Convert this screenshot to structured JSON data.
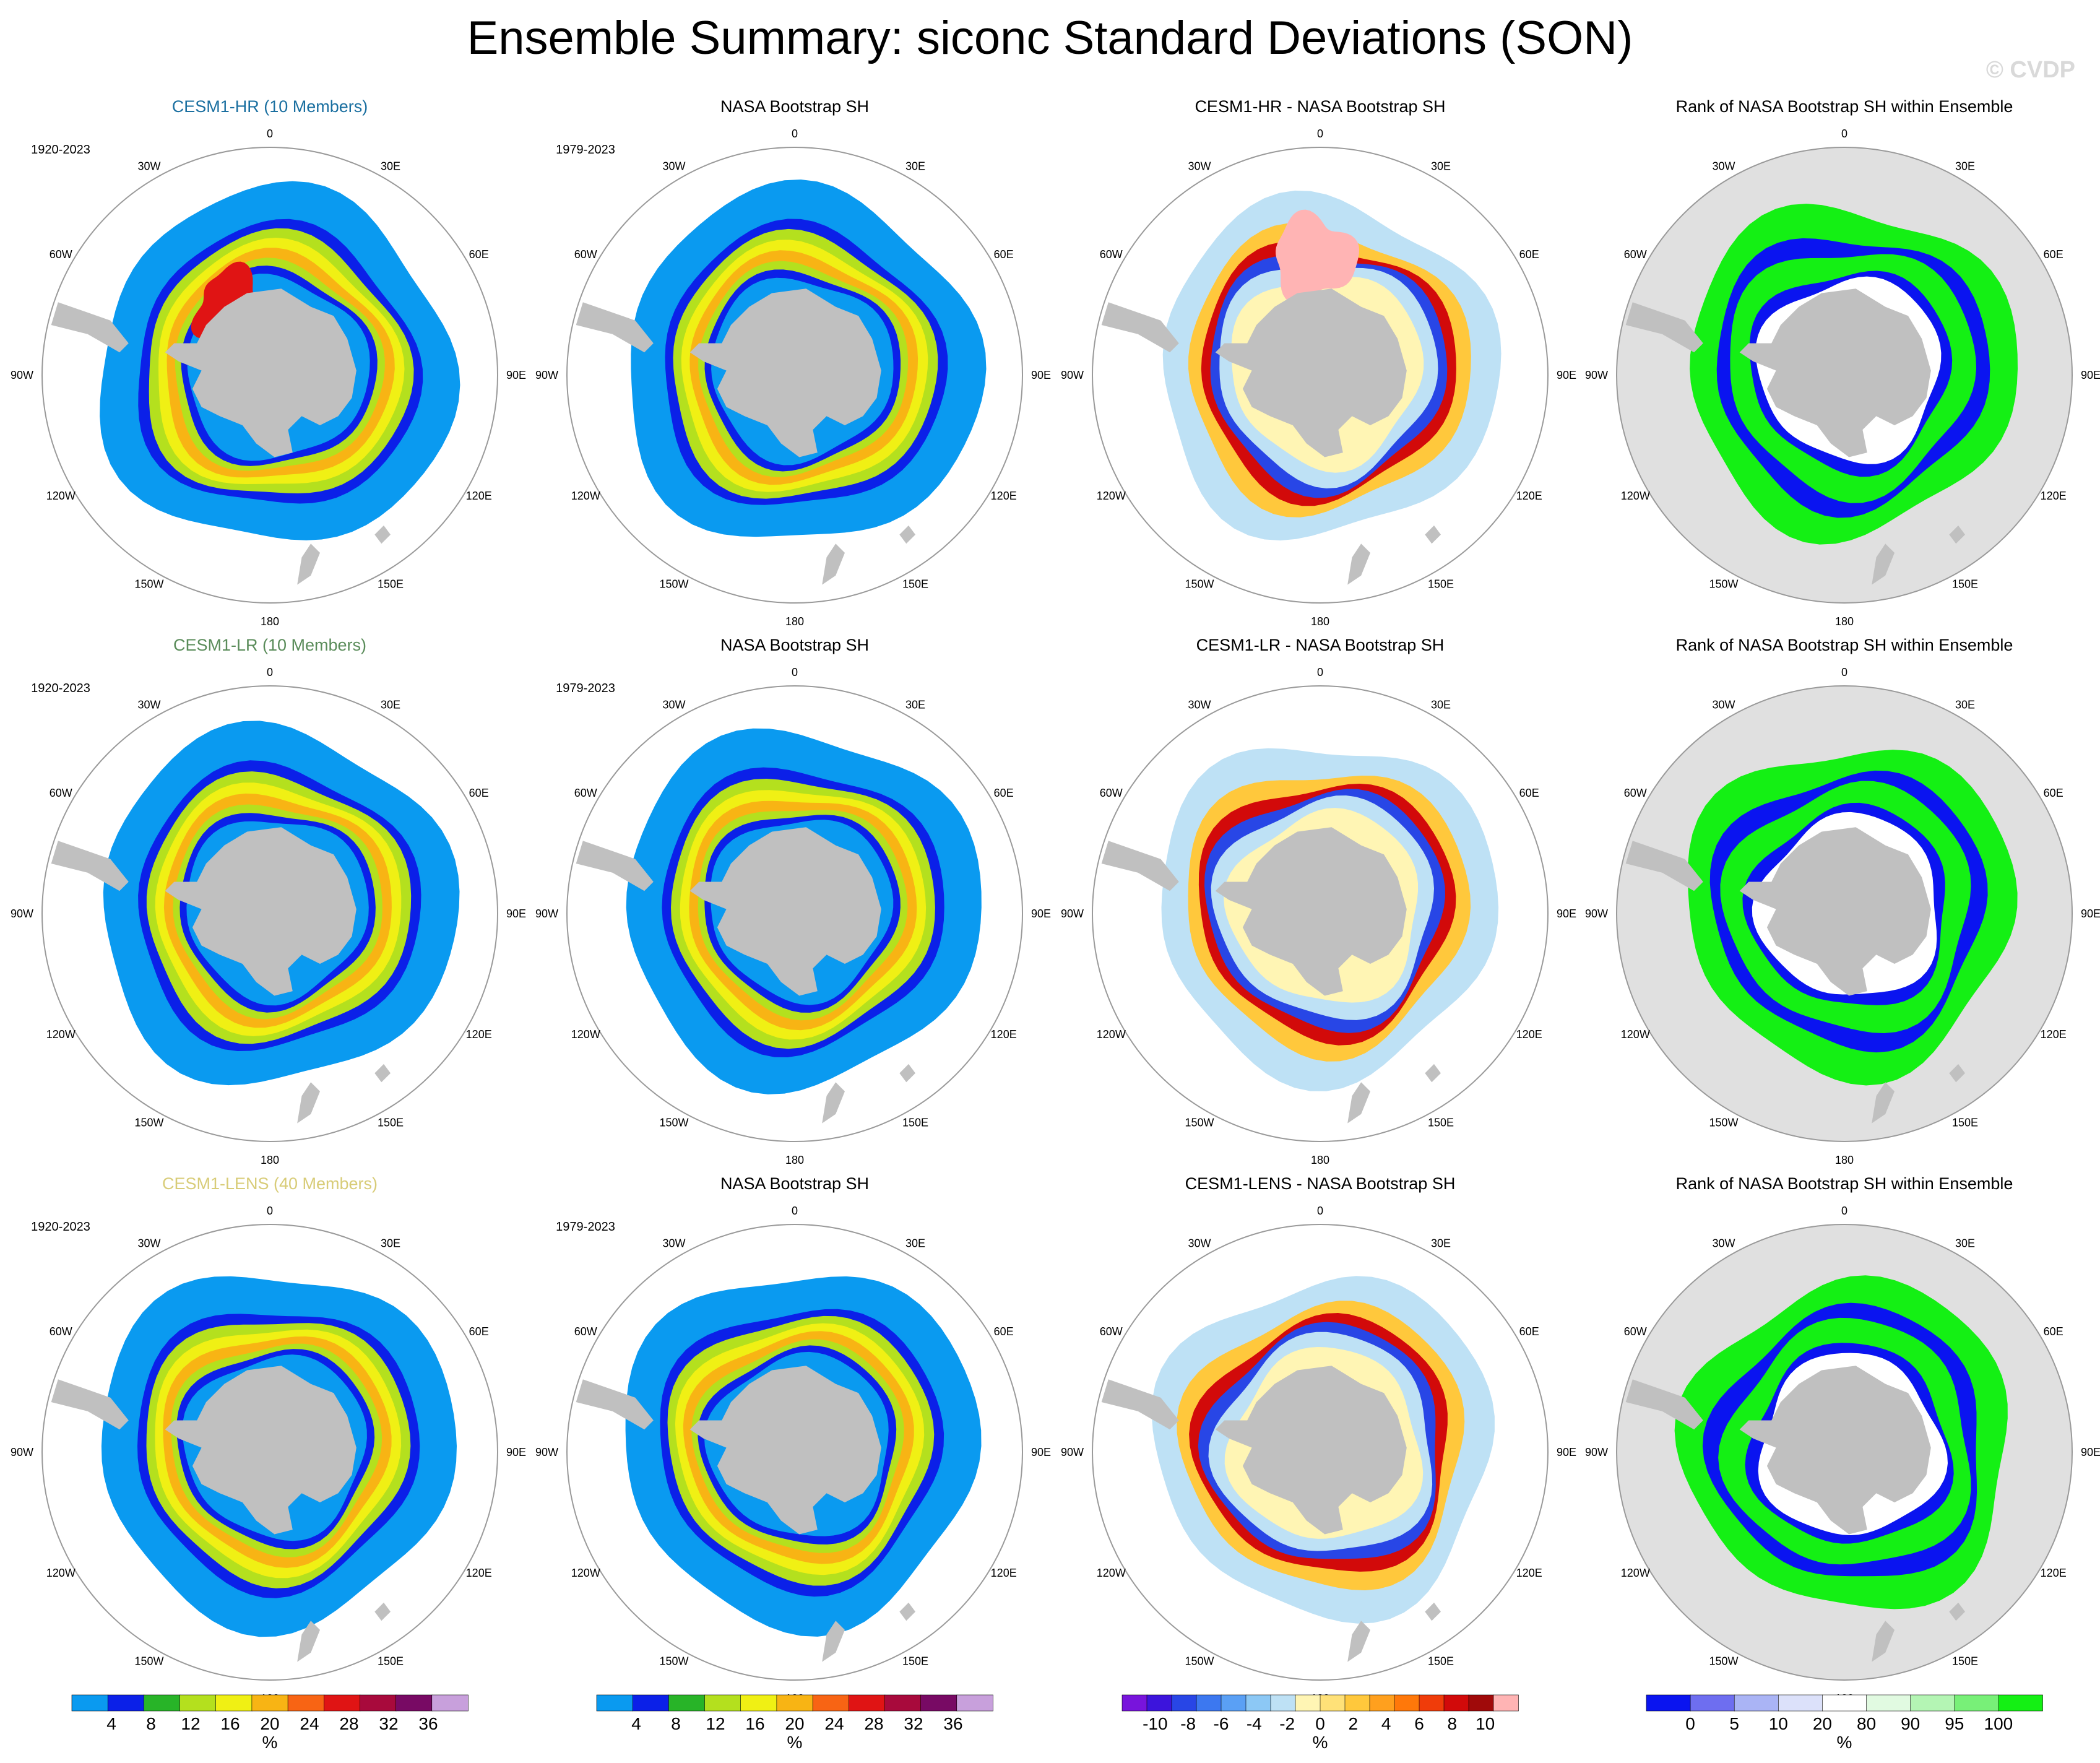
{
  "title": "Ensemble Summary: siconc Standard Deviations (SON)",
  "watermark": "© CVDP",
  "colors": {
    "land": "#c0c0c0",
    "ocean_bg": "#ffffff",
    "rank_bg": "#e0e0e0",
    "circle": "#9a9a9a",
    "row_title_colors": [
      "#1a6fa0",
      "#5a8c5a",
      "#d8cc78"
    ]
  },
  "lon_labels": [
    "0",
    "30E",
    "60E",
    "90E",
    "120E",
    "150E",
    "180",
    "150W",
    "120W",
    "90W",
    "60W",
    "30W"
  ],
  "columns": [
    {
      "kind": "model"
    },
    {
      "kind": "obs"
    },
    {
      "kind": "diff"
    },
    {
      "kind": "rank"
    }
  ],
  "rows": [
    {
      "titles": [
        "CESM1-HR (10 Members)",
        "NASA Bootstrap SH",
        "CESM1-HR - NASA Bootstrap SH",
        "Rank of NASA Bootstrap SH within Ensemble"
      ],
      "periods": [
        "1920-2023",
        "1979-2023",
        "",
        ""
      ]
    },
    {
      "titles": [
        "CESM1-LR (10 Members)",
        "NASA Bootstrap SH",
        "CESM1-LR - NASA Bootstrap SH",
        "Rank of NASA Bootstrap SH within Ensemble"
      ],
      "periods": [
        "1920-2023",
        "1979-2023",
        "",
        ""
      ]
    },
    {
      "titles": [
        "CESM1-LENS (40 Members)",
        "NASA Bootstrap SH",
        "CESM1-LENS - NASA Bootstrap SH",
        "Rank of NASA Bootstrap SH within Ensemble"
      ],
      "periods": [
        "1920-2023",
        "1979-2023",
        "",
        ""
      ]
    }
  ],
  "colorbars": [
    {
      "unit": "%",
      "colors": [
        "#0a9af0",
        "#0b20e8",
        "#28b428",
        "#b4e01e",
        "#f0f014",
        "#f8b414",
        "#f86414",
        "#e01414",
        "#a80a3c",
        "#780a64",
        "#c8a0dc"
      ],
      "labels": [
        "4",
        "8",
        "12",
        "16",
        "20",
        "24",
        "28",
        "32",
        "36"
      ]
    },
    {
      "unit": "%",
      "colors": [
        "#0a9af0",
        "#0b20e8",
        "#28b428",
        "#b4e01e",
        "#f0f014",
        "#f8b414",
        "#f86414",
        "#e01414",
        "#a80a3c",
        "#780a64",
        "#c8a0dc"
      ],
      "labels": [
        "4",
        "8",
        "12",
        "16",
        "20",
        "24",
        "28",
        "32",
        "36"
      ]
    },
    {
      "unit": "%",
      "colors": [
        "#7814dc",
        "#3c14dc",
        "#2846e6",
        "#3c78f0",
        "#5aa0f5",
        "#8cc8f5",
        "#bee1f5",
        "#fff5b4",
        "#ffe178",
        "#ffc83c",
        "#ffa01e",
        "#ff780a",
        "#f03c0a",
        "#d20a0a",
        "#a00a0a",
        "#ffb4b4"
      ],
      "labels": [
        "-10",
        "-8",
        "-6",
        "-4",
        "-2",
        "0",
        "2",
        "4",
        "6",
        "8",
        "10"
      ]
    },
    {
      "unit": "%",
      "colors": [
        "#0a14f0",
        "#6e6ef0",
        "#aab4f5",
        "#dce1fa",
        "#ffffff",
        "#e1fae1",
        "#b4f5b4",
        "#78f078",
        "#14f014"
      ],
      "labels": [
        "0",
        "5",
        "10",
        "20",
        "80",
        "90",
        "95",
        "100"
      ]
    }
  ]
}
